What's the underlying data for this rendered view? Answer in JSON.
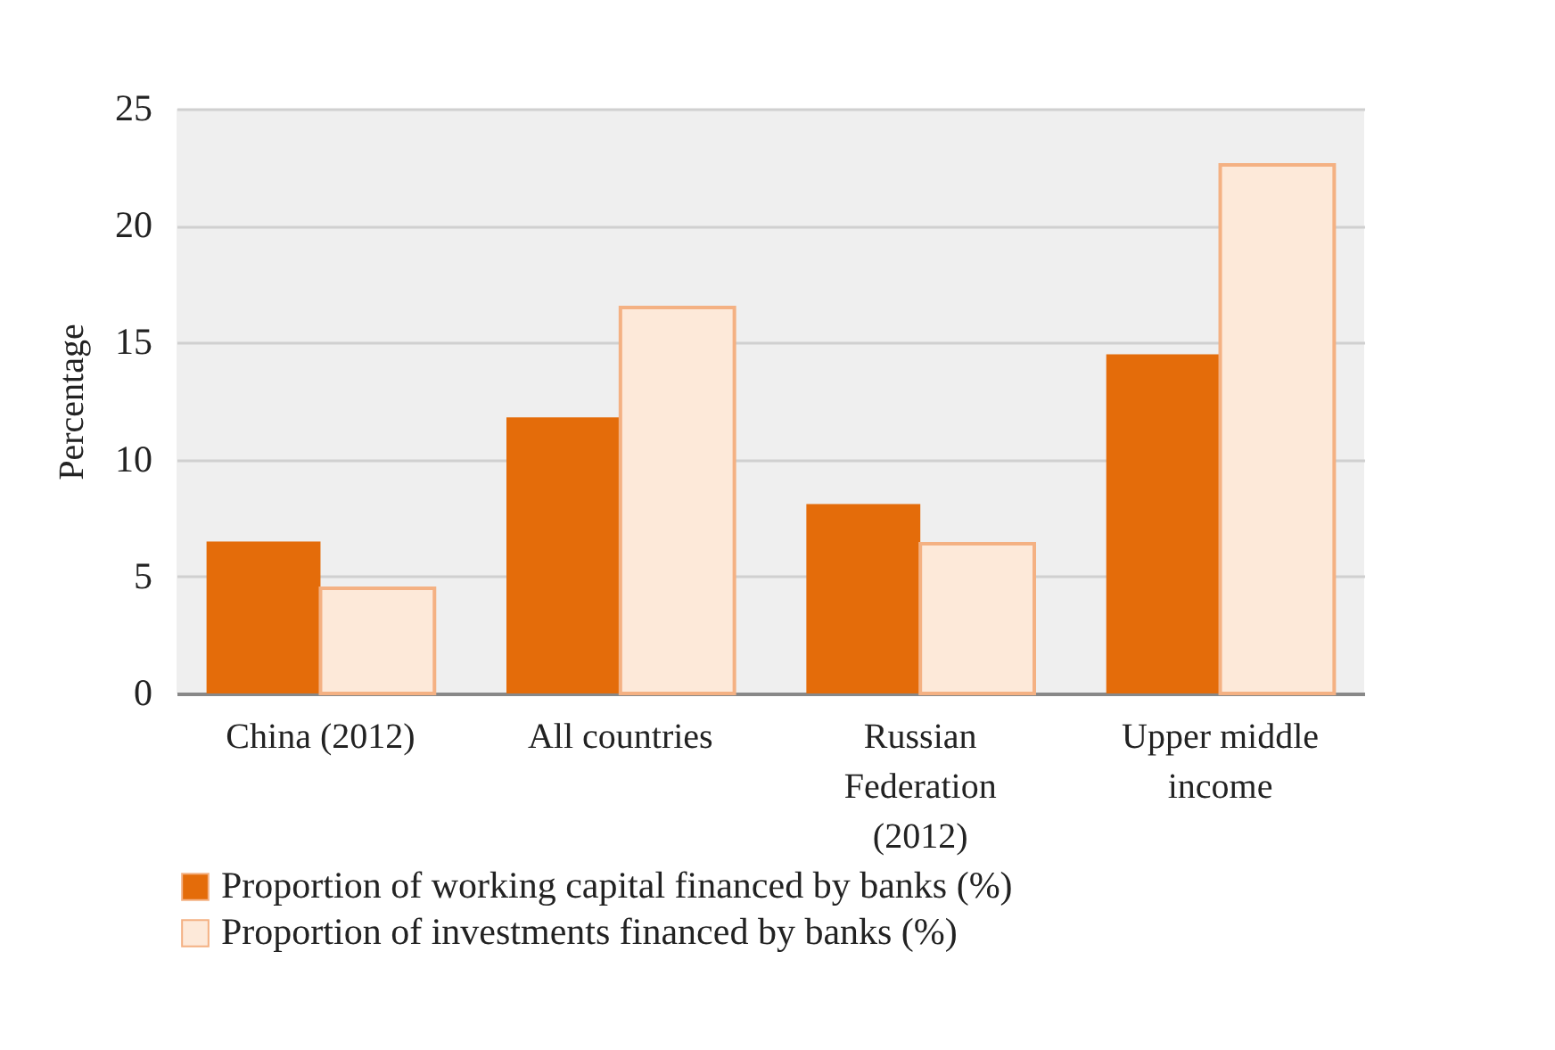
{
  "chart_data": {
    "type": "bar",
    "ylabel": "Percentage",
    "categories": [
      "China (2012)",
      "All countries",
      "Russian Federation (2012)",
      "Upper middle income"
    ],
    "series": [
      {
        "name": "Proportion of working capital financed by banks (%)",
        "color": "#e46c0a",
        "values": [
          6.5,
          11.8,
          8.1,
          14.5
        ]
      },
      {
        "name": "Proportion of investments financed by banks (%)",
        "color": "#fde9d9",
        "values": [
          4.5,
          16.5,
          6.4,
          22.6
        ]
      }
    ],
    "ylim": [
      0,
      25
    ],
    "yticks": [
      0,
      5,
      10,
      15,
      20,
      25
    ],
    "grid": "y",
    "legend": "bottom"
  }
}
